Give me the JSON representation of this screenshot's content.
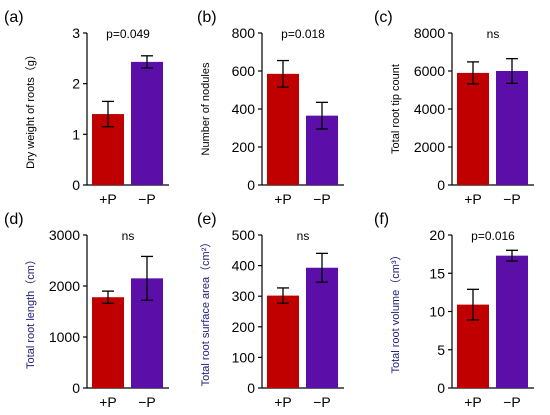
{
  "colors": {
    "plus_p": "#C00000",
    "minus_p": "#5B0FA8",
    "axis": "#000000",
    "ylabel_c": "#000000",
    "ylabel_b": "#1F1A7A"
  },
  "chart_data": [
    {
      "type": "bar",
      "panel_label": "(a)",
      "annotation": "p=0.049",
      "ylabel": "Dry weight of roots（g）",
      "ylabel_color": "ylabel_c",
      "categories": [
        "+P",
        "−P"
      ],
      "values": [
        1.4,
        2.43
      ],
      "errors": [
        0.25,
        0.12
      ],
      "ylim": [
        0,
        3
      ],
      "yticks": [
        "0",
        "1",
        "2",
        "3"
      ],
      "ytick_values": [
        0,
        1,
        2,
        3
      ]
    },
    {
      "type": "bar",
      "panel_label": "(b)",
      "annotation": "p=0.018",
      "ylabel": "Number of nodules",
      "ylabel_color": "ylabel_c",
      "categories": [
        "+P",
        "−P"
      ],
      "values": [
        585,
        365
      ],
      "errors": [
        70,
        70
      ],
      "ylim": [
        0,
        800
      ],
      "yticks": [
        "0",
        "200",
        "400",
        "600",
        "800"
      ],
      "ytick_values": [
        0,
        200,
        400,
        600,
        800
      ]
    },
    {
      "type": "bar",
      "panel_label": "(c)",
      "annotation": "ns",
      "ylabel": "Total root tip count",
      "ylabel_color": "ylabel_c",
      "categories": [
        "+P",
        "−P"
      ],
      "values": [
        5900,
        6000
      ],
      "errors": [
        580,
        650
      ],
      "ylim": [
        0,
        8000
      ],
      "yticks": [
        "0",
        "2000",
        "4000",
        "6000",
        "8000"
      ],
      "ytick_values": [
        0,
        2000,
        4000,
        6000,
        8000
      ]
    },
    {
      "type": "bar",
      "panel_label": "(d)",
      "annotation": "ns",
      "ylabel": "Total root length（cm）",
      "ylabel_color": "ylabel_b",
      "categories": [
        "+P",
        "−P"
      ],
      "values": [
        1780,
        2150
      ],
      "errors": [
        120,
        430
      ],
      "ylim": [
        0,
        3000
      ],
      "yticks": [
        "0",
        "1000",
        "2000",
        "3000"
      ],
      "ytick_values": [
        0,
        1000,
        2000,
        3000
      ]
    },
    {
      "type": "bar",
      "panel_label": "(e)",
      "annotation": "ns",
      "ylabel": "Total root surface area（cm²）",
      "ylabel_color": "ylabel_b",
      "categories": [
        "+P",
        "−P"
      ],
      "values": [
        302,
        393
      ],
      "errors": [
        25,
        47
      ],
      "ylim": [
        0,
        500
      ],
      "yticks": [
        "0",
        "100",
        "200",
        "300",
        "400",
        "500"
      ],
      "ytick_values": [
        0,
        100,
        200,
        300,
        400,
        500
      ]
    },
    {
      "type": "bar",
      "panel_label": "(f)",
      "annotation": "p=0.016",
      "ylabel": "Total root volume（cm³）",
      "ylabel_color": "ylabel_b",
      "categories": [
        "+P",
        "−P"
      ],
      "values": [
        10.9,
        17.3
      ],
      "errors": [
        2.0,
        0.7
      ],
      "ylim": [
        0,
        20
      ],
      "yticks": [
        "0",
        "5",
        "10",
        "15",
        "20"
      ],
      "ytick_values": [
        0,
        5,
        10,
        15,
        20
      ]
    }
  ]
}
